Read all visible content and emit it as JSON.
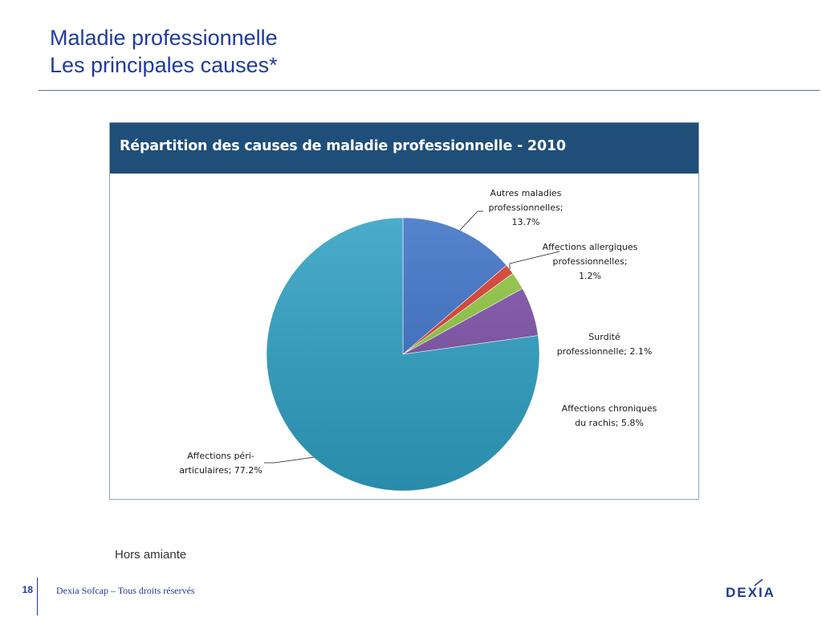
{
  "slide": {
    "title_line1": "Maladie professionnelle",
    "title_line2": "Les principales causes*",
    "footnote": "Hors amiante",
    "page_number": "18",
    "copyright": "Dexia Sofcap – Tous droits réservés",
    "logo_text": "DEXIA"
  },
  "chart_data": {
    "type": "pie",
    "title": "Répartition des causes de maladie professionnelle - 2010",
    "start": "12 o'clock, clockwise",
    "slices": [
      {
        "name": "Autres maladies professionnelles",
        "value": 13.7,
        "color": "#3a6fc4",
        "label_lines": [
          "Autres maladies",
          "professionnelles;",
          "13.7%"
        ]
      },
      {
        "name": "Affections allergiques professionnelles",
        "value": 1.2,
        "color": "#d63a2c",
        "label_lines": [
          "Affections allergiques",
          "professionnelles;",
          "1.2%"
        ]
      },
      {
        "name": "Surdité professionnelle",
        "value": 2.1,
        "color": "#8dc43e",
        "label_lines": [
          "Surdité",
          "professionnelle; 2.1%"
        ]
      },
      {
        "name": "Affections chroniques du rachis",
        "value": 5.8,
        "color": "#7b4fa6",
        "label_lines": [
          "Affections chroniques",
          "du rachis; 5.8%"
        ]
      },
      {
        "name": "Affections péri-articulaires",
        "value": 77.2,
        "color": "#2e9fc2",
        "label_lines": [
          "Affections péri-",
          "articulaires; 77.2%"
        ]
      }
    ]
  }
}
